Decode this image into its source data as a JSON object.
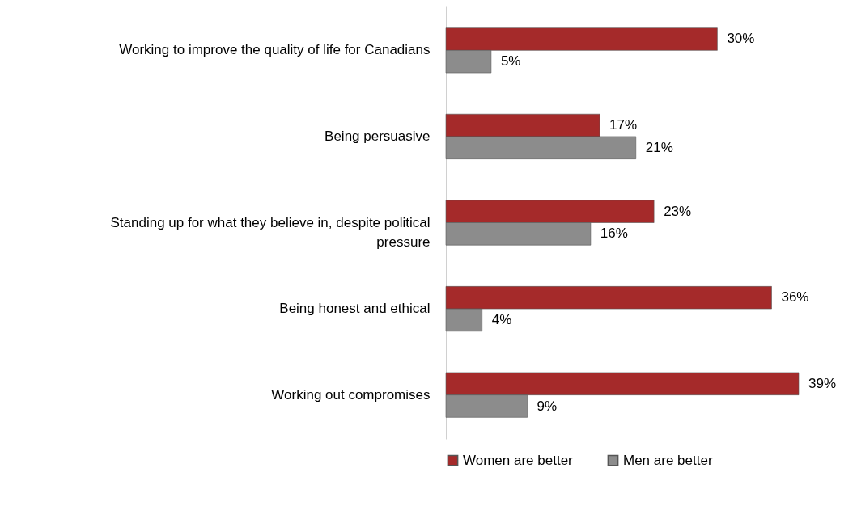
{
  "chart_data": {
    "type": "bar",
    "orientation": "horizontal",
    "data_labels": false,
    "legend": "bottom",
    "categories": [
      "Working to improve the quality of life for Canadians",
      "Being persuasive",
      "Standing up for what they believe in, despite political pressure",
      "Being honest and ethical",
      "Working out compromises"
    ],
    "series": [
      {
        "name": "Women are better",
        "color": "#a52a2a",
        "values": [
          30,
          17,
          23,
          36,
          39
        ],
        "value_labels": [
          "30%",
          "17%",
          "23%",
          "36%",
          "39%"
        ]
      },
      {
        "name": "Men are better",
        "color": "#8c8c8c",
        "values": [
          5,
          21,
          16,
          4,
          9
        ],
        "value_labels": [
          "5%",
          "21%",
          "16%",
          "4%",
          "9%"
        ]
      }
    ]
  }
}
